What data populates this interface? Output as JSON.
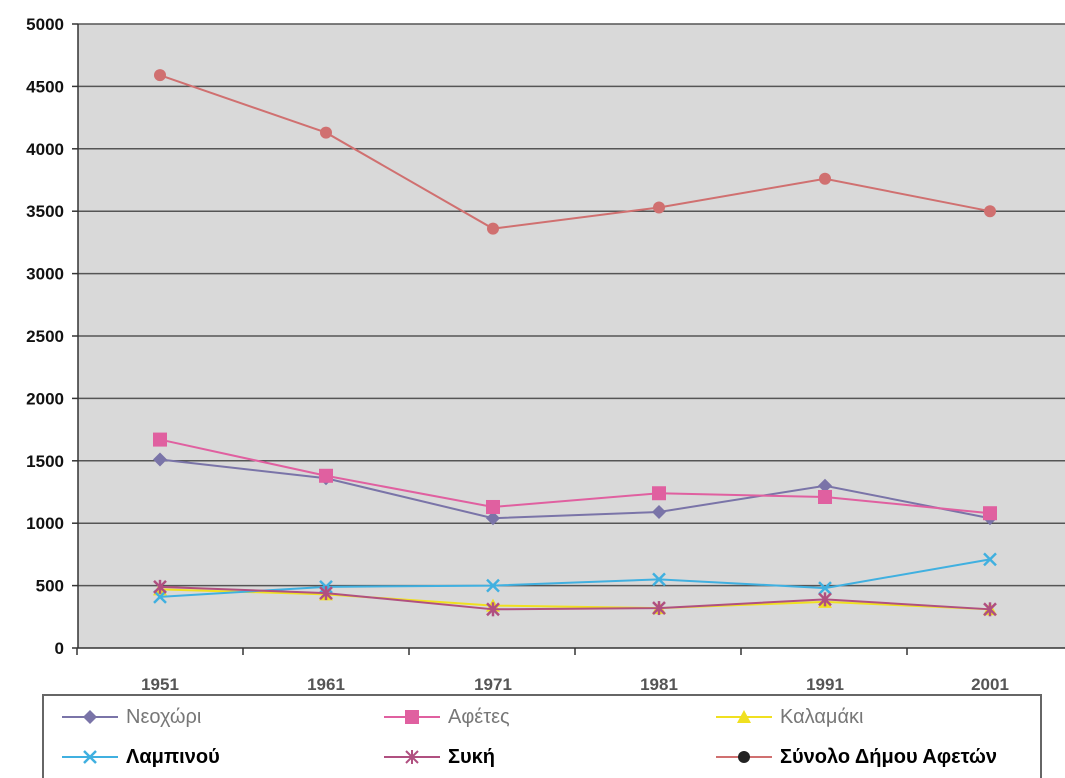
{
  "chart_data": {
    "type": "line",
    "categories": [
      "1951",
      "1961",
      "1971",
      "1981",
      "1991",
      "2001"
    ],
    "y_ticks": [
      "0",
      "500",
      "1000",
      "1500",
      "2000",
      "2500",
      "3000",
      "3500",
      "4000",
      "4500",
      "5000"
    ],
    "ylim": [
      0,
      5000
    ],
    "grid": true,
    "legend_position": "bottom",
    "series": [
      {
        "name": "Νεοχώρι",
        "values": [
          1510,
          1360,
          1040,
          1090,
          1300,
          1040
        ],
        "color": "#7a74a8",
        "marker": "diamond"
      },
      {
        "name": "Αφέτες",
        "values": [
          1670,
          1380,
          1130,
          1240,
          1210,
          1080
        ],
        "color": "#e060a0",
        "marker": "square"
      },
      {
        "name": "Καλαμάκι",
        "values": [
          470,
          430,
          340,
          320,
          370,
          310
        ],
        "color": "#f0e020",
        "marker": "triangle"
      },
      {
        "name": "Λαμπινού",
        "values": [
          410,
          490,
          500,
          550,
          480,
          710
        ],
        "color": "#40b0e0",
        "marker": "x"
      },
      {
        "name": "Συκή",
        "values": [
          490,
          440,
          310,
          320,
          390,
          310
        ],
        "color": "#b05080",
        "marker": "star"
      },
      {
        "name": "Σύνολο Δήμου Αφετών",
        "values": [
          4590,
          4130,
          3360,
          3530,
          3760,
          3500
        ],
        "color": "#d07070",
        "marker": "circle"
      }
    ]
  }
}
